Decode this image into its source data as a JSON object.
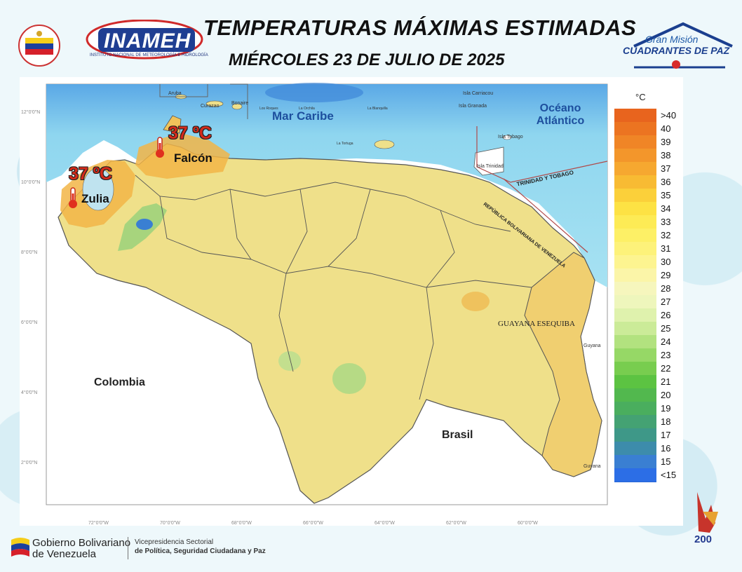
{
  "header": {
    "title": "TEMPERATURAS MÁXIMAS ESTIMADAS",
    "date": "MIÉRCOLES 23 DE JULIO DE 2025",
    "inameh_logo_text": "INAMEH",
    "inameh_logo_sub": "INSTITUTO NACIONAL DE METEOROLOGÍA E HIDROLOGÍA",
    "cuadrantes_small": "Gran Misión",
    "cuadrantes_big": "CUADRANTES DE PAZ"
  },
  "map": {
    "lat_ticks": [
      "12°0'0\"N",
      "10°0'0\"N",
      "8°0'0\"N",
      "6°0'0\"N",
      "4°0'0\"N",
      "2°0'0\"N"
    ],
    "lon_ticks": [
      "72°0'0\"W",
      "70°0'0\"W",
      "68°0'0\"W",
      "66°0'0\"W",
      "64°0'0\"W",
      "62°0'0\"W",
      "60°0'0\"W"
    ],
    "labels": {
      "sea": "Mar Caribe",
      "ocean": "Océano Atlántico",
      "colombia": "Colombia",
      "brasil": "Brasil",
      "guayana": "GUAYANA ESEQUIBA",
      "trinidad": "TRINIDAD Y TOBAGO",
      "rbv": "REPÚBLICA BOLIVARIANA DE VENEZUELA",
      "aruba": "Aruba",
      "curazao": "Curazao",
      "bonaire": "Bonaire",
      "carriacou": "Isla Carriacou",
      "granada": "Isla Granada",
      "tobago": "Isla Tobago",
      "isla_trinidad": "Isla Trinidad",
      "guyana_n": "Guyana",
      "guyana_s": "Guyana",
      "los_roques": "Los Roques",
      "la_orchila": "La Orchila",
      "la_blanquilla": "La Blanquilla",
      "la_tortuga": "La Tortuga"
    },
    "highlights": [
      {
        "temp": "37 ºC",
        "state": "Falcón"
      },
      {
        "temp": "37 ºC",
        "state": "Zulia"
      }
    ]
  },
  "legend": {
    "unit": "°C",
    "items": [
      {
        "label": ">40",
        "color": "#e8641e"
      },
      {
        "label": "40",
        "color": "#ec7421"
      },
      {
        "label": "39",
        "color": "#f08526"
      },
      {
        "label": "38",
        "color": "#f3962b"
      },
      {
        "label": "37",
        "color": "#f6a830"
      },
      {
        "label": "36",
        "color": "#f8bb33"
      },
      {
        "label": "35",
        "color": "#fbd03a"
      },
      {
        "label": "34",
        "color": "#fde244"
      },
      {
        "label": "33",
        "color": "#fdeb55"
      },
      {
        "label": "32",
        "color": "#fdf066"
      },
      {
        "label": "31",
        "color": "#fdf27a"
      },
      {
        "label": "30",
        "color": "#fdf490"
      },
      {
        "label": "29",
        "color": "#fbf5a8"
      },
      {
        "label": "28",
        "color": "#f6f6bd"
      },
      {
        "label": "27",
        "color": "#eef6bc"
      },
      {
        "label": "26",
        "color": "#dff2ad"
      },
      {
        "label": "25",
        "color": "#cbeb98"
      },
      {
        "label": "24",
        "color": "#b2e27f"
      },
      {
        "label": "23",
        "color": "#96d866"
      },
      {
        "label": "22",
        "color": "#78cd4f"
      },
      {
        "label": "21",
        "color": "#5cc342"
      },
      {
        "label": "20",
        "color": "#52b84e"
      },
      {
        "label": "19",
        "color": "#4aae5e"
      },
      {
        "label": "18",
        "color": "#44a273"
      },
      {
        "label": "17",
        "color": "#3e9888"
      },
      {
        "label": "16",
        "color": "#3d8cab"
      },
      {
        "label": "15",
        "color": "#3a7fd2"
      },
      {
        "label": "<15",
        "color": "#2c6ee6"
      }
    ]
  },
  "footer": {
    "gob_line1": "Gobierno Bolivariano",
    "gob_line2": "de Venezuela",
    "vice_line1": "Vicepresidencia Sectorial",
    "vice_line2": "de Política, Seguridad Ciudadana y Paz",
    "bicentenario": "200"
  },
  "colors": {
    "sea": "#8fd6ef",
    "deep_sea": "#3e88d8",
    "land_main": "#efe08a",
    "land_hot": "#f2b546",
    "border": "#555555"
  }
}
